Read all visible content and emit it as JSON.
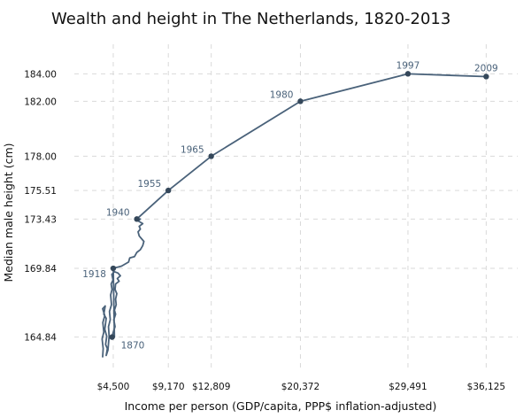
{
  "chart_data": {
    "type": "line",
    "title": "Wealth and height in The Netherlands, 1820-2013",
    "xlabel": "Income per person (GDP/capita, PPP$ inflation-adjusted)",
    "ylabel": "Median male height (cm)",
    "x_ticks": [
      4500,
      9170,
      12809,
      20372,
      29491,
      36125
    ],
    "x_tick_labels": [
      "$4,500",
      "$9,170",
      "$12,809",
      "$20,372",
      "$29,491",
      "$36,125"
    ],
    "y_ticks": [
      164.84,
      169.84,
      173.43,
      175.51,
      178.0,
      182.0,
      184.0
    ],
    "y_tick_labels": [
      "164.84",
      "169.84",
      "173.43",
      "175.51",
      "178.00",
      "182.00",
      "184.00"
    ],
    "xlim": [
      1200,
      38800
    ],
    "ylim": [
      162.3,
      186.15
    ],
    "grid": "vertical and horizontal dashed gridlines at ticks",
    "line_color": "#4a627a",
    "series": [
      {
        "points": [
          [
            3600,
            163.4
          ],
          [
            3650,
            164.0
          ],
          [
            3560,
            164.7
          ],
          [
            3700,
            165.2
          ],
          [
            3620,
            165.9
          ],
          [
            3780,
            166.4
          ],
          [
            3600,
            166.9
          ],
          [
            3820,
            167.1
          ],
          [
            3700,
            166.5
          ],
          [
            3900,
            166.2
          ],
          [
            3780,
            165.4
          ],
          [
            3950,
            164.9
          ],
          [
            3850,
            164.3
          ],
          [
            4000,
            164.0
          ],
          [
            3900,
            163.5
          ],
          [
            4050,
            163.9
          ],
          [
            4150,
            164.9
          ],
          [
            4100,
            165.6
          ],
          [
            4250,
            166.1
          ],
          [
            4180,
            166.7
          ],
          [
            4350,
            167.2
          ],
          [
            4280,
            167.9
          ],
          [
            4400,
            168.3
          ],
          [
            4320,
            168.7
          ],
          [
            4480,
            169.0
          ],
          [
            4380,
            169.4
          ],
          [
            4600,
            169.6
          ],
          [
            4900,
            169.5
          ],
          [
            5100,
            169.3
          ],
          [
            4850,
            169.1
          ],
          [
            5000,
            168.9
          ],
          [
            4700,
            168.7
          ],
          [
            4650,
            168.3
          ],
          [
            4800,
            168.0
          ],
          [
            4700,
            167.6
          ],
          [
            4750,
            167.2
          ],
          [
            4600,
            166.8
          ],
          [
            4700,
            166.5
          ],
          [
            4550,
            166.1
          ],
          [
            4650,
            165.6
          ],
          [
            4500,
            165.2
          ],
          [
            4400,
            164.84
          ],
          [
            4600,
            164.84
          ],
          [
            4500,
            169.84
          ],
          [
            5200,
            170.0
          ],
          [
            5800,
            170.3
          ],
          [
            5900,
            170.6
          ],
          [
            6300,
            170.7
          ],
          [
            6500,
            171.0
          ],
          [
            6800,
            171.2
          ],
          [
            7000,
            171.5
          ],
          [
            7100,
            171.8
          ],
          [
            6900,
            172.0
          ],
          [
            6700,
            172.2
          ],
          [
            6600,
            172.5
          ],
          [
            6800,
            172.7
          ],
          [
            6700,
            172.9
          ],
          [
            7000,
            173.1
          ],
          [
            6600,
            173.3
          ],
          [
            6800,
            173.43
          ],
          [
            6500,
            173.43
          ],
          [
            9170,
            175.51
          ],
          [
            12809,
            178.0
          ],
          [
            20372,
            182.0
          ],
          [
            29491,
            184.0
          ],
          [
            36125,
            183.8
          ]
        ]
      }
    ],
    "markers": [
      {
        "year": "1870",
        "x": 4400,
        "y": 164.84,
        "label_pos": "below-right"
      },
      {
        "year": "1918",
        "x": 4500,
        "y": 169.84,
        "label_pos": "below-left"
      },
      {
        "year": "1940",
        "x": 6500,
        "y": 173.43,
        "label_pos": "above-left"
      },
      {
        "year": "1955",
        "x": 9170,
        "y": 175.51,
        "label_pos": "above-left"
      },
      {
        "year": "1965",
        "x": 12809,
        "y": 178.0,
        "label_pos": "above-left"
      },
      {
        "year": "1980",
        "x": 20372,
        "y": 182.0,
        "label_pos": "above-left"
      },
      {
        "year": "1997",
        "x": 29491,
        "y": 184.0,
        "label_pos": "above"
      },
      {
        "year": "2009",
        "x": 36125,
        "y": 183.8,
        "label_pos": "above"
      }
    ]
  }
}
